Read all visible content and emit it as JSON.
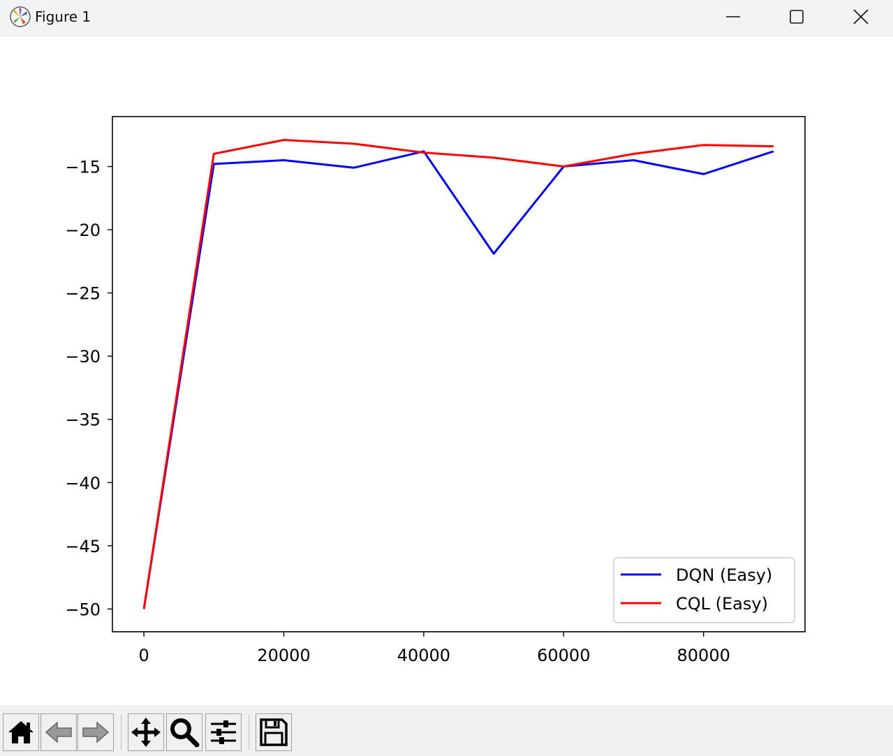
{
  "window": {
    "title": "Figure 1",
    "icons": {
      "app": "matplotlib-icon",
      "minimize": "minimize-icon",
      "maximize": "maximize-icon",
      "close": "close-icon"
    }
  },
  "toolbar": {
    "buttons": [
      {
        "name": "home",
        "icon": "home-icon"
      },
      {
        "name": "back",
        "icon": "back-arrow-icon",
        "enabled": false
      },
      {
        "name": "forward",
        "icon": "forward-arrow-icon",
        "enabled": false
      },
      {
        "name": "pan",
        "icon": "move-icon"
      },
      {
        "name": "zoom",
        "icon": "magnifier-icon"
      },
      {
        "name": "configure-subplots",
        "icon": "sliders-icon"
      },
      {
        "name": "save",
        "icon": "save-icon"
      }
    ]
  },
  "chart_data": {
    "type": "line",
    "title": "",
    "xlabel": "",
    "ylabel": "",
    "x": [
      0,
      10000,
      20000,
      30000,
      40000,
      50000,
      60000,
      70000,
      80000,
      90000
    ],
    "series": [
      {
        "name": "DQN (Easy)",
        "color": "#0000ff",
        "values": [
          -50,
          -14.8,
          -14.5,
          -15.1,
          -13.8,
          -21.9,
          -15.0,
          -14.5,
          -15.6,
          -13.8
        ]
      },
      {
        "name": "CQL (Easy)",
        "color": "#ff0000",
        "values": [
          -50,
          -14.0,
          -12.9,
          -13.2,
          -13.9,
          -14.3,
          -15.0,
          -14.0,
          -13.3,
          -13.4
        ]
      }
    ],
    "xlim": [
      -4500,
      94500
    ],
    "ylim": [
      -51.8,
      -11.05
    ],
    "xticks": [
      0,
      20000,
      40000,
      60000,
      80000
    ],
    "xtick_labels": [
      "0",
      "20000",
      "40000",
      "60000",
      "80000"
    ],
    "yticks": [
      -15,
      -20,
      -25,
      -30,
      -35,
      -40,
      -45,
      -50
    ],
    "ytick_labels": [
      "−15",
      "−20",
      "−25",
      "−30",
      "−35",
      "−40",
      "−45",
      "−50"
    ],
    "grid": false,
    "legend": {
      "position": "lower-right",
      "entries": [
        "DQN (Easy)",
        "CQL (Easy)"
      ]
    }
  }
}
